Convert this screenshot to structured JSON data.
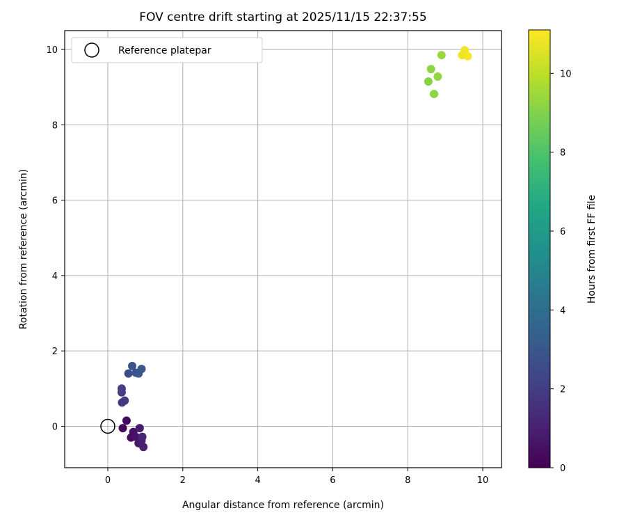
{
  "chart_data": {
    "type": "scatter",
    "title": "FOV centre drift starting at 2025/11/15 22:37:55",
    "xlabel": "Angular distance from reference (arcmin)",
    "ylabel": "Rotation from reference (arcmin)",
    "xlim": [
      -1.15,
      10.5
    ],
    "ylim": [
      -1.1,
      10.5
    ],
    "xticks": [
      0,
      2,
      4,
      6,
      8,
      10
    ],
    "yticks": [
      0,
      2,
      4,
      6,
      8,
      10
    ],
    "grid": true,
    "legend": {
      "position": "top-left",
      "entries": [
        "Reference platepar"
      ]
    },
    "reference_point": {
      "x": 0,
      "y": 0
    },
    "colorbar": {
      "label": "Hours from first FF file",
      "colormap": "viridis",
      "range": [
        0,
        11.1
      ],
      "ticks": [
        0,
        2,
        4,
        6,
        8,
        10
      ]
    },
    "points": [
      {
        "x": 0.4,
        "y": -0.05,
        "t": 0.2
      },
      {
        "x": 0.5,
        "y": 0.15,
        "t": 0.3
      },
      {
        "x": 0.62,
        "y": -0.3,
        "t": 0.4
      },
      {
        "x": 0.68,
        "y": -0.15,
        "t": 0.5
      },
      {
        "x": 0.75,
        "y": -0.28,
        "t": 0.6
      },
      {
        "x": 0.82,
        "y": -0.45,
        "t": 0.7
      },
      {
        "x": 0.85,
        "y": -0.05,
        "t": 0.8
      },
      {
        "x": 0.9,
        "y": -0.38,
        "t": 0.9
      },
      {
        "x": 0.95,
        "y": -0.55,
        "t": 1.0
      },
      {
        "x": 0.92,
        "y": -0.28,
        "t": 1.1
      },
      {
        "x": 0.38,
        "y": 0.63,
        "t": 1.7
      },
      {
        "x": 0.45,
        "y": 0.68,
        "t": 1.8
      },
      {
        "x": 0.37,
        "y": 0.9,
        "t": 2.0
      },
      {
        "x": 0.37,
        "y": 1.0,
        "t": 2.1
      },
      {
        "x": 0.55,
        "y": 1.4,
        "t": 2.6
      },
      {
        "x": 0.65,
        "y": 1.6,
        "t": 2.8
      },
      {
        "x": 0.75,
        "y": 1.42,
        "t": 2.9
      },
      {
        "x": 0.82,
        "y": 1.4,
        "t": 3.0
      },
      {
        "x": 0.9,
        "y": 1.52,
        "t": 3.1
      },
      {
        "x": 8.55,
        "y": 9.15,
        "t": 9.1
      },
      {
        "x": 8.7,
        "y": 8.82,
        "t": 9.2
      },
      {
        "x": 8.8,
        "y": 9.28,
        "t": 9.3
      },
      {
        "x": 8.62,
        "y": 9.48,
        "t": 9.2
      },
      {
        "x": 8.9,
        "y": 9.85,
        "t": 9.4
      },
      {
        "x": 9.45,
        "y": 9.85,
        "t": 10.8
      },
      {
        "x": 9.52,
        "y": 9.98,
        "t": 10.9
      },
      {
        "x": 9.6,
        "y": 9.82,
        "t": 11.0
      }
    ]
  }
}
